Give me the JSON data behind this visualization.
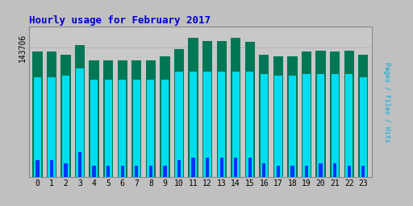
{
  "title": "Hourly usage for February 2017",
  "ylabel": "Pages / Files / Hits",
  "hours": [
    0,
    1,
    2,
    3,
    4,
    5,
    6,
    7,
    8,
    9,
    10,
    11,
    12,
    13,
    14,
    15,
    16,
    17,
    18,
    19,
    20,
    21,
    22,
    23
  ],
  "pages": [
    0.9,
    0.9,
    0.88,
    0.95,
    0.84,
    0.84,
    0.84,
    0.84,
    0.84,
    0.87,
    0.92,
    1.0,
    0.98,
    0.98,
    1.0,
    0.97,
    0.88,
    0.87,
    0.87,
    0.9,
    0.91,
    0.9,
    0.91,
    0.88
  ],
  "files": [
    0.72,
    0.72,
    0.73,
    0.78,
    0.7,
    0.7,
    0.7,
    0.7,
    0.7,
    0.7,
    0.76,
    0.76,
    0.76,
    0.76,
    0.76,
    0.76,
    0.74,
    0.73,
    0.73,
    0.74,
    0.74,
    0.74,
    0.74,
    0.72
  ],
  "hits": [
    0.12,
    0.12,
    0.1,
    0.18,
    0.08,
    0.08,
    0.08,
    0.08,
    0.08,
    0.08,
    0.12,
    0.14,
    0.14,
    0.14,
    0.14,
    0.14,
    0.1,
    0.08,
    0.08,
    0.08,
    0.1,
    0.1,
    0.08,
    0.08
  ],
  "pages_color": "#007755",
  "files_color": "#00ddee",
  "hits_color": "#0033ff",
  "background_color": "#c0c0c0",
  "plot_bg_color": "#c8c8c8",
  "title_color": "#0000cc",
  "ylabel_text_color": "#00aadd",
  "ytick_label": "143706",
  "bar_width": 0.7,
  "title_fontsize": 9,
  "tick_fontsize": 7
}
